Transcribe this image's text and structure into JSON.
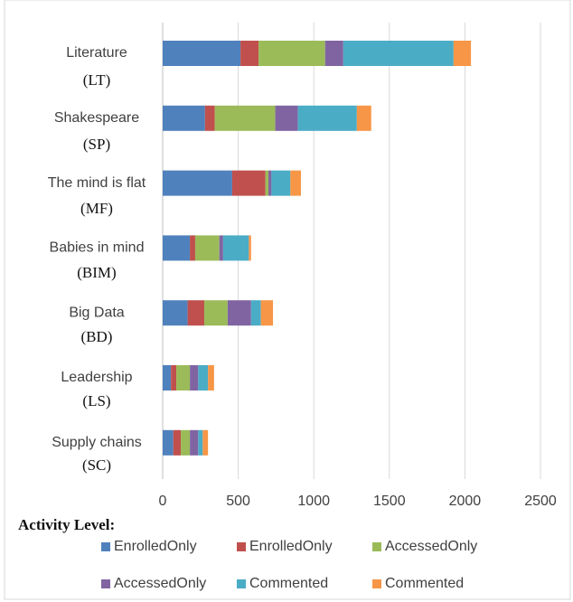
{
  "chart_data": {
    "type": "stacked_bar_horizontal",
    "categories": [
      "Literature",
      "Shakespeare",
      "The mind is flat",
      "Babies in mind",
      "Big Data",
      "Leadership",
      "Supply chains"
    ],
    "category_codes": [
      "(LT)",
      "(SP)",
      "(MF)",
      "(BIM)",
      "(BD)",
      "(LS)",
      "(SC)"
    ],
    "series": [
      {
        "name": "EnrolledOnly",
        "color": "#4f81bd",
        "values": [
          515,
          280,
          460,
          180,
          165,
          55,
          70
        ]
      },
      {
        "name": "EnrolledOnly",
        "color": "#c0504d",
        "values": [
          120,
          65,
          220,
          35,
          110,
          35,
          50
        ]
      },
      {
        "name": "AccessedOnly",
        "color": "#9bbb59",
        "values": [
          440,
          400,
          20,
          160,
          155,
          90,
          60
        ]
      },
      {
        "name": "AccessedOnly",
        "color": "#8064a2",
        "values": [
          120,
          150,
          20,
          25,
          155,
          55,
          55
        ]
      },
      {
        "name": "Commented",
        "color": "#4bacc6",
        "values": [
          730,
          390,
          125,
          170,
          65,
          65,
          30
        ]
      },
      {
        "name": "Commented",
        "color": "#f79646",
        "values": [
          115,
          95,
          70,
          15,
          80,
          40,
          35
        ]
      }
    ],
    "xlim": [
      0,
      2500
    ],
    "xticks": [
      0,
      500,
      1000,
      1500,
      2000,
      2500
    ],
    "grid": true,
    "legend_title": "Activity Level:"
  }
}
